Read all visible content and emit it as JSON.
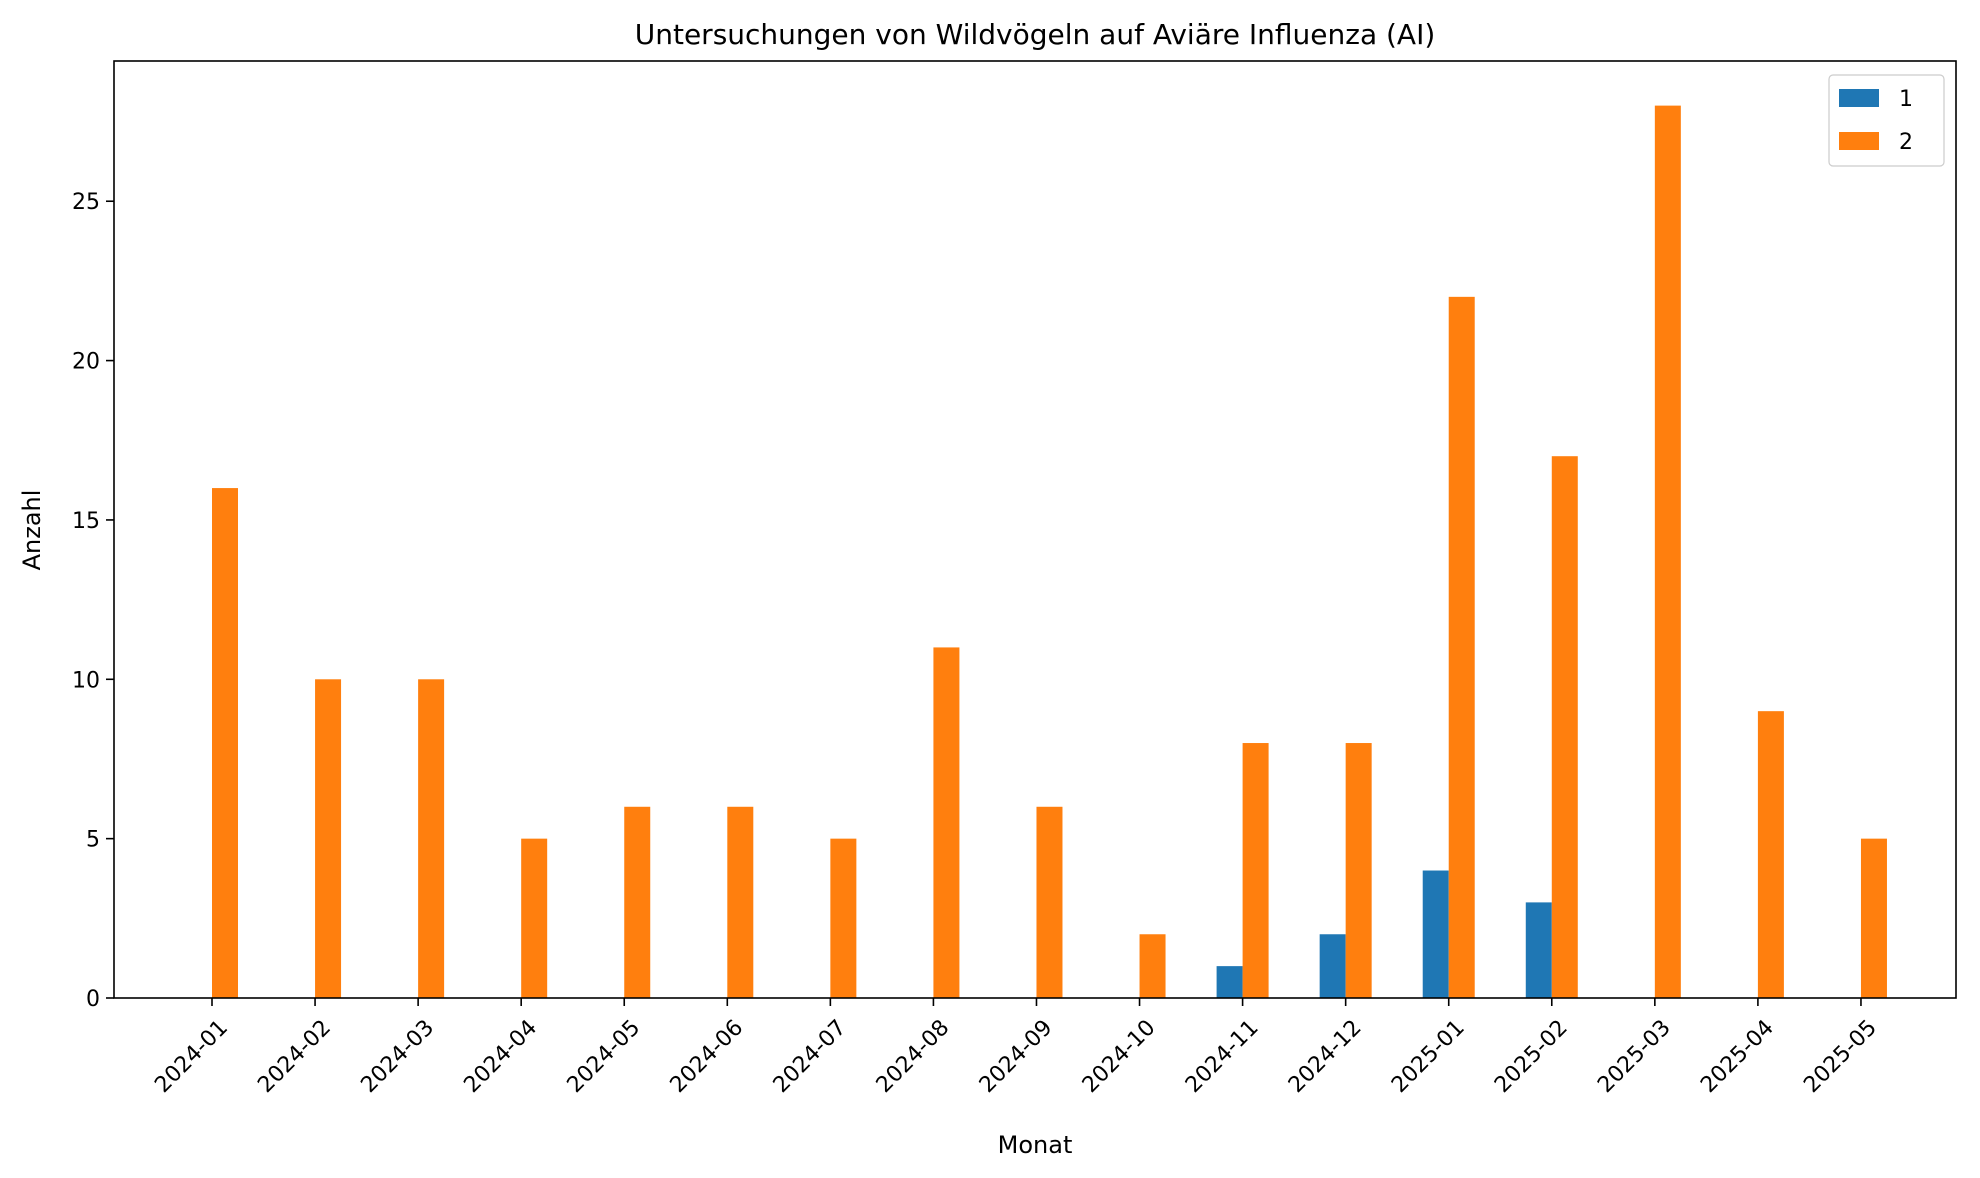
{
  "chart_data": {
    "type": "bar",
    "title": "Untersuchungen von Wildvögeln auf Aviäre Influenza (AI)",
    "xlabel": "Monat",
    "ylabel": "Anzahl",
    "categories": [
      "2024-01",
      "2024-02",
      "2024-03",
      "2024-04",
      "2024-05",
      "2024-06",
      "2024-07",
      "2024-08",
      "2024-09",
      "2024-10",
      "2024-11",
      "2024-12",
      "2025-01",
      "2025-02",
      "2025-03",
      "2025-04",
      "2025-05"
    ],
    "series": [
      {
        "name": "1",
        "color": "#1f77b4",
        "values": [
          0,
          0,
          0,
          0,
          0,
          0,
          0,
          0,
          0,
          0,
          1,
          2,
          4,
          3,
          0,
          0,
          0
        ]
      },
      {
        "name": "2",
        "color": "#ff7f0e",
        "values": [
          16,
          10,
          10,
          5,
          6,
          6,
          5,
          11,
          6,
          2,
          8,
          8,
          22,
          17,
          28,
          9,
          5
        ]
      }
    ],
    "yticks": [
      0,
      5,
      10,
      15,
      20,
      25
    ],
    "ylim": [
      0,
      29.4
    ],
    "grid": false,
    "legend_position": "top-right"
  }
}
